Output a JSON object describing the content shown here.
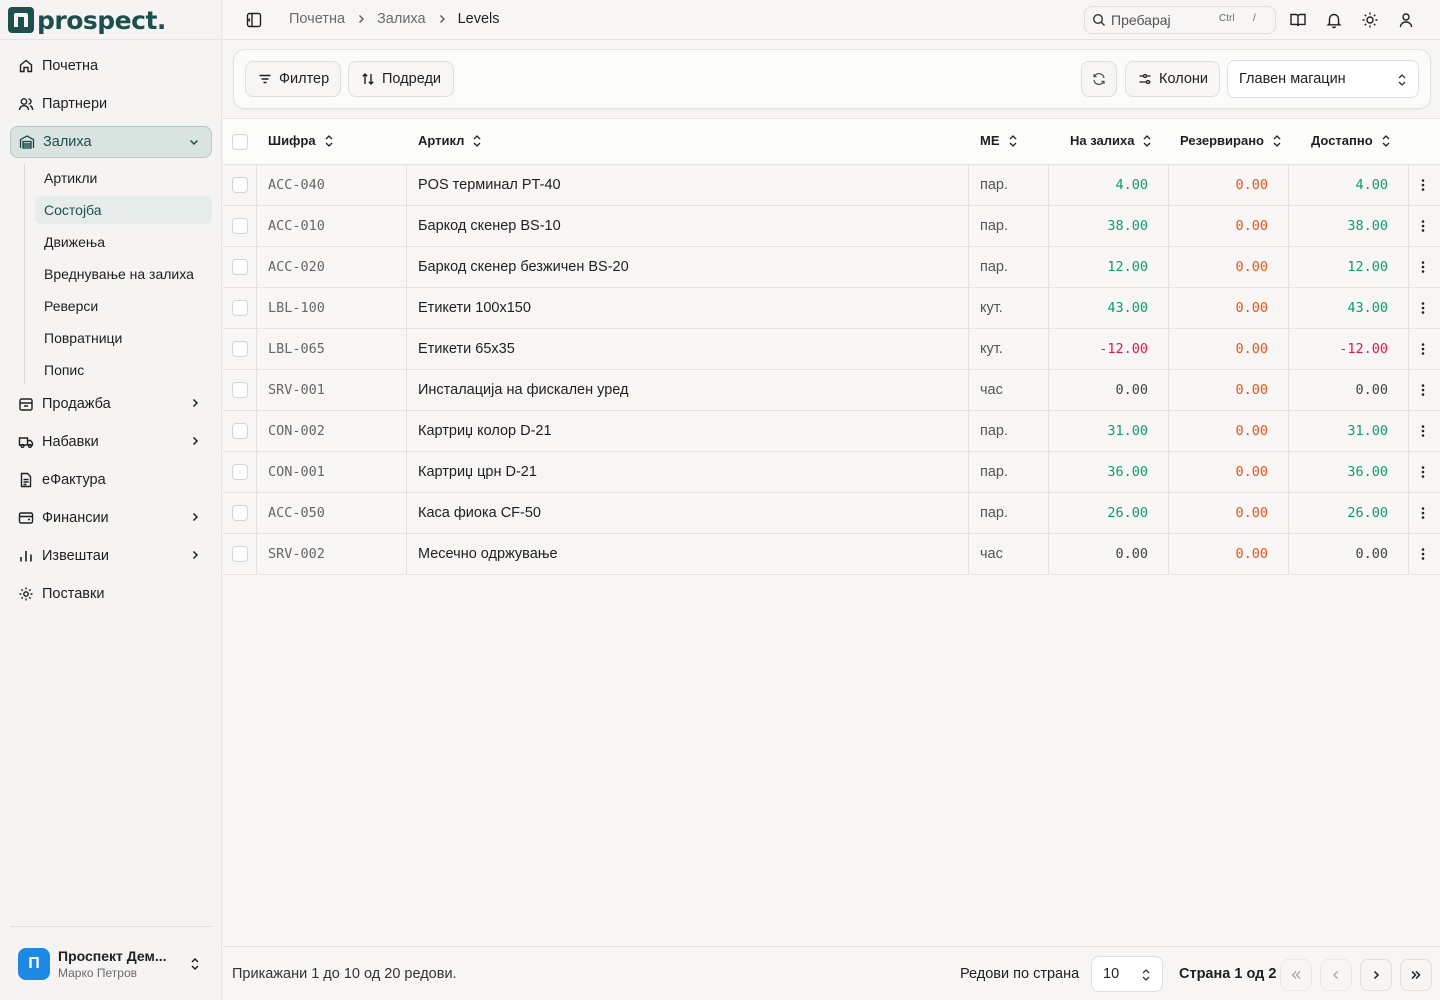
{
  "app": {
    "logo_text": "prospect."
  },
  "sidebar": {
    "items": [
      {
        "label": "Почетна",
        "icon": "home-icon"
      },
      {
        "label": "Партнери",
        "icon": "users-icon"
      },
      {
        "label": "Залиха",
        "icon": "warehouse-icon",
        "active": true
      },
      {
        "label": "Продажба",
        "icon": "cart-icon"
      },
      {
        "label": "Набавки",
        "icon": "truck-icon"
      },
      {
        "label": "еФактура",
        "icon": "file-icon"
      },
      {
        "label": "Финансии",
        "icon": "wallet-icon"
      },
      {
        "label": "Извештаи",
        "icon": "bar-chart-icon"
      },
      {
        "label": "Поставки",
        "icon": "gear-icon"
      }
    ],
    "sub_items": [
      "Артикли",
      "Состојба",
      "Движења",
      "Вреднување на залиха",
      "Реверси",
      "Повратници",
      "Попис"
    ],
    "active_sub": "Состојба"
  },
  "user": {
    "initial": "П",
    "name": "Проспект Дем...",
    "subtitle": "Марко Петров"
  },
  "header": {
    "breadcrumbs": [
      "Почетна",
      "Залиха",
      "Levels"
    ],
    "search_placeholder": "Пребарај",
    "shortcut_key1": "Ctrl",
    "shortcut_key2": "/"
  },
  "toolbar": {
    "filter_label": "Филтер",
    "sort_label": "Подреди",
    "columns_label": "Колони",
    "warehouse_selected": "Главен магацин"
  },
  "table": {
    "columns": [
      "Шифра",
      "Артикл",
      "МЕ",
      "На залиха",
      "Резервирано",
      "Достапно"
    ],
    "rows": [
      {
        "code": "ACC-040",
        "name": "POS терминал PT-40",
        "unit": "пар.",
        "stock": "4.00",
        "reserved": "0.00",
        "available": "4.00"
      },
      {
        "code": "ACC-010",
        "name": "Баркод скенер BS-10",
        "unit": "пар.",
        "stock": "38.00",
        "reserved": "0.00",
        "available": "38.00"
      },
      {
        "code": "ACC-020",
        "name": "Баркод скенер безжичен BS-20",
        "unit": "пар.",
        "stock": "12.00",
        "reserved": "0.00",
        "available": "12.00"
      },
      {
        "code": "LBL-100",
        "name": "Етикети 100x150",
        "unit": "кут.",
        "stock": "43.00",
        "reserved": "0.00",
        "available": "43.00"
      },
      {
        "code": "LBL-065",
        "name": "Етикети 65x35",
        "unit": "кут.",
        "stock": "-12.00",
        "reserved": "0.00",
        "available": "-12.00"
      },
      {
        "code": "SRV-001",
        "name": "Инсталација на фискален уред",
        "unit": "час",
        "stock": "0.00",
        "reserved": "0.00",
        "available": "0.00"
      },
      {
        "code": "CON-002",
        "name": "Картриџ колор D-21",
        "unit": "пар.",
        "stock": "31.00",
        "reserved": "0.00",
        "available": "31.00"
      },
      {
        "code": "CON-001",
        "name": "Картриџ црн D-21",
        "unit": "пар.",
        "stock": "36.00",
        "reserved": "0.00",
        "available": "36.00"
      },
      {
        "code": "ACC-050",
        "name": "Каса фиока CF-50",
        "unit": "пар.",
        "stock": "26.00",
        "reserved": "0.00",
        "available": "26.00"
      },
      {
        "code": "SRV-002",
        "name": "Месечно одржување",
        "unit": "час",
        "stock": "0.00",
        "reserved": "0.00",
        "available": "0.00"
      }
    ]
  },
  "footer": {
    "summary": "Прикажани 1 до 10 од 20 редови.",
    "rows_per_page_label": "Редови по страна",
    "rows_per_page_value": "10",
    "page_label": "Страна 1 од 2"
  },
  "colors": {
    "positive": "#0f9b6e",
    "negative": "#e0194f",
    "reserved": "#e8541c",
    "zero": "#444444",
    "accent": "#1f4f4c"
  }
}
